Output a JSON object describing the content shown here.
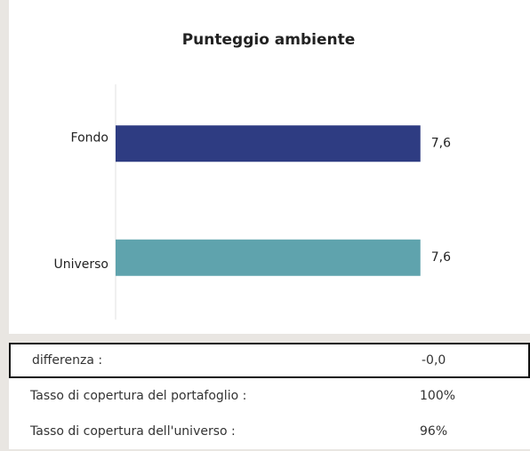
{
  "chart_data": {
    "type": "bar",
    "orientation": "horizontal",
    "title": "Punteggio ambiente",
    "categories": [
      "Fondo",
      "Universo"
    ],
    "values": [
      7.6,
      7.6
    ],
    "value_labels": [
      "7,6",
      "7,6"
    ],
    "colors": [
      "#2e3c82",
      "#5fa3ad"
    ],
    "xlim": [
      0,
      10
    ]
  },
  "table": {
    "rows": [
      [
        "differenza :",
        "-0,0"
      ],
      [
        "Tasso di copertura del portafoglio :",
        "100%"
      ],
      [
        "Tasso di copertura dell'universo :",
        "96%"
      ]
    ]
  }
}
